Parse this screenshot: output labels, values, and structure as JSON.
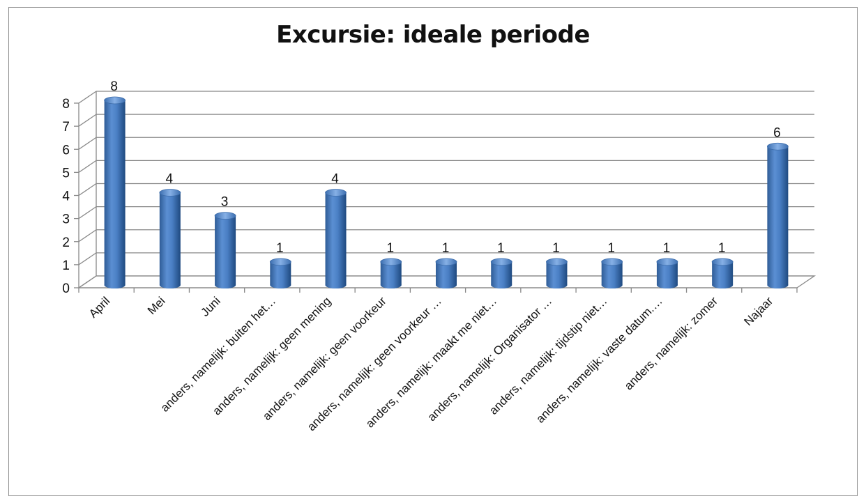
{
  "chart_data": {
    "type": "bar",
    "title": "Excursie: ideale periode",
    "xlabel": "",
    "ylabel": "",
    "ylim": [
      0,
      8
    ],
    "yticks": [
      0,
      1,
      2,
      3,
      4,
      5,
      6,
      7,
      8
    ],
    "grid": true,
    "legend": "none",
    "three_d": true,
    "bar_color": "#4f81bd",
    "categories": [
      "April",
      "Mei",
      "Juni",
      "anders, namelijk: buiten het…",
      "anders, namelijk: geen mening",
      "anders, namelijk: geen voorkeur",
      "anders, namelijk: geen voorkeur …",
      "anders, namelijk: maakt me niet…",
      "anders, namelijk: Organisator …",
      "anders, namelijk: tijdstip niet…",
      "anders, namelijk: vaste datum.…",
      "anders, namelijk: zomer",
      "Najaar"
    ],
    "values": [
      8,
      4,
      3,
      1,
      4,
      1,
      1,
      1,
      1,
      1,
      1,
      1,
      6
    ],
    "data_labels": [
      "8",
      "4",
      "3",
      "1",
      "4",
      "1",
      "1",
      "1",
      "1",
      "1",
      "1",
      "1",
      "6"
    ]
  }
}
